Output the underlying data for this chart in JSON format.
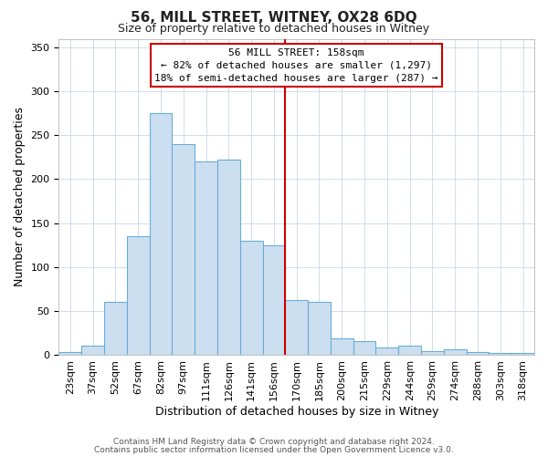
{
  "title": "56, MILL STREET, WITNEY, OX28 6DQ",
  "subtitle": "Size of property relative to detached houses in Witney",
  "xlabel": "Distribution of detached houses by size in Witney",
  "ylabel": "Number of detached properties",
  "categories": [
    "23sqm",
    "37sqm",
    "52sqm",
    "67sqm",
    "82sqm",
    "97sqm",
    "111sqm",
    "126sqm",
    "141sqm",
    "156sqm",
    "170sqm",
    "185sqm",
    "200sqm",
    "215sqm",
    "229sqm",
    "244sqm",
    "259sqm",
    "274sqm",
    "288sqm",
    "303sqm",
    "318sqm"
  ],
  "values": [
    3,
    10,
    60,
    135,
    275,
    240,
    220,
    222,
    130,
    125,
    62,
    60,
    19,
    16,
    8,
    10,
    4,
    6,
    3,
    2,
    2
  ],
  "bar_color": "#ccdff0",
  "bar_edge_color": "#6aadd5",
  "vline_color": "#cc0000",
  "annotation_title": "56 MILL STREET: 158sqm",
  "annotation_line1": "← 82% of detached houses are smaller (1,297)",
  "annotation_line2": "18% of semi-detached houses are larger (287) →",
  "annotation_box_color": "#cc0000",
  "ylim": [
    0,
    360
  ],
  "yticks": [
    0,
    50,
    100,
    150,
    200,
    250,
    300,
    350
  ],
  "footer1": "Contains HM Land Registry data © Crown copyright and database right 2024.",
  "footer2": "Contains public sector information licensed under the Open Government Licence v3.0.",
  "background_color": "#ffffff",
  "grid_color": "#c8d8e8",
  "title_fontsize": 11,
  "subtitle_fontsize": 9,
  "xlabel_fontsize": 9,
  "ylabel_fontsize": 9,
  "tick_fontsize": 8,
  "footer_fontsize": 6.5
}
